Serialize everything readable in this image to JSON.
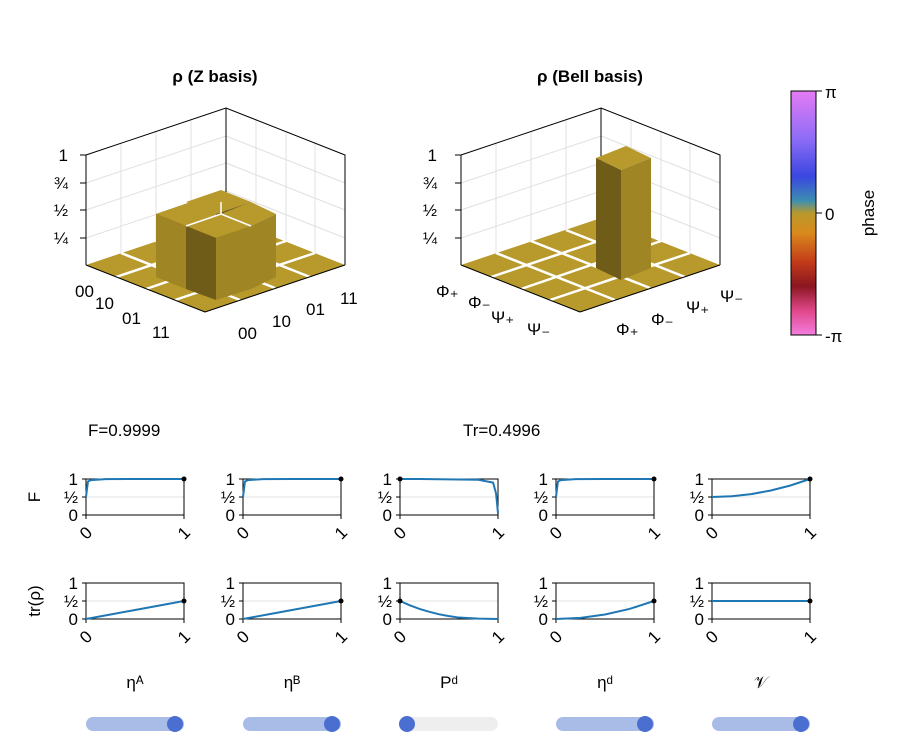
{
  "chart_data": [
    {
      "type": "bar3d",
      "title": "ρ (Z basis)",
      "z_ticks": [
        "1",
        "¾",
        "½",
        "¼"
      ],
      "row_labels": [
        "00",
        "10",
        "01",
        "11"
      ],
      "col_labels": [
        "00",
        "10",
        "01",
        "11"
      ],
      "values": [
        [
          0,
          0,
          0,
          0
        ],
        [
          0,
          0.5,
          0.5,
          0
        ],
        [
          0,
          0.5,
          0.5,
          0
        ],
        [
          0,
          0,
          0,
          0
        ]
      ],
      "phase": 0
    },
    {
      "type": "bar3d",
      "title": "ρ (Bell basis)",
      "z_ticks": [
        "1",
        "¾",
        "½",
        "¼"
      ],
      "row_labels": [
        "Φ₊",
        "Φ₋",
        "Ψ₊",
        "Ψ₋"
      ],
      "col_labels": [
        "Φ₊",
        "Φ₋",
        "Ψ₊",
        "Ψ₋"
      ],
      "values": [
        [
          0,
          0,
          0,
          0
        ],
        [
          0,
          0,
          0,
          0
        ],
        [
          0,
          0,
          1,
          0
        ],
        [
          0,
          0,
          0,
          0
        ]
      ],
      "phase": 0
    },
    {
      "type": "colorbar",
      "label": "phase",
      "ticks": [
        "π",
        "0",
        "-π"
      ]
    },
    {
      "type": "line",
      "grid": "2x5",
      "row_ylabels": [
        "F",
        "tr(ρ)"
      ],
      "y_ticks": [
        "1",
        "½",
        "0"
      ],
      "x_ticks": [
        "0",
        "1"
      ],
      "col_xlabels": [
        "ηᴬ",
        "ηᴮ",
        "Pᵈ",
        "ηᵈ",
        "𝒱"
      ],
      "panels": [
        {
          "name": "F vs etaA",
          "x": [
            0,
            0.02,
            0.05,
            0.2,
            0.5,
            0.8,
            1
          ],
          "y": [
            0.5,
            0.93,
            0.97,
            0.995,
            1,
            1,
            1
          ],
          "marker": [
            1,
            1
          ]
        },
        {
          "name": "F vs etaB",
          "x": [
            0,
            0.02,
            0.05,
            0.2,
            0.5,
            0.8,
            1
          ],
          "y": [
            0.5,
            0.93,
            0.97,
            0.995,
            1,
            1,
            1
          ],
          "marker": [
            1,
            1
          ]
        },
        {
          "name": "F vs Pd",
          "x": [
            0,
            0.2,
            0.5,
            0.8,
            0.95,
            0.98,
            1
          ],
          "y": [
            1,
            1,
            0.99,
            0.98,
            0.9,
            0.6,
            0.05
          ],
          "marker": [
            0,
            1
          ]
        },
        {
          "name": "F vs etad",
          "x": [
            0,
            0.02,
            0.05,
            0.2,
            0.5,
            0.8,
            1
          ],
          "y": [
            0.5,
            0.93,
            0.97,
            0.995,
            1,
            1,
            1
          ],
          "marker": [
            1,
            1
          ]
        },
        {
          "name": "F vs V",
          "x": [
            0,
            0.2,
            0.4,
            0.6,
            0.8,
            1
          ],
          "y": [
            0.5,
            0.52,
            0.58,
            0.68,
            0.82,
            1
          ],
          "marker": [
            1,
            1
          ]
        },
        {
          "name": "tr vs etaA",
          "x": [
            0,
            0.25,
            0.5,
            0.75,
            1
          ],
          "y": [
            0,
            0.125,
            0.25,
            0.375,
            0.5
          ],
          "marker": [
            1,
            0.5
          ]
        },
        {
          "name": "tr vs etaB",
          "x": [
            0,
            0.25,
            0.5,
            0.75,
            1
          ],
          "y": [
            0,
            0.125,
            0.25,
            0.375,
            0.5
          ],
          "marker": [
            1,
            0.5
          ]
        },
        {
          "name": "tr vs Pd",
          "x": [
            0,
            0.1,
            0.2,
            0.3,
            0.4,
            0.5,
            0.6,
            0.8,
            1
          ],
          "y": [
            0.5,
            0.38,
            0.28,
            0.2,
            0.13,
            0.08,
            0.04,
            0.01,
            0
          ],
          "marker": [
            0,
            0.5
          ]
        },
        {
          "name": "tr vs etad",
          "x": [
            0,
            0.25,
            0.5,
            0.75,
            1
          ],
          "y": [
            0,
            0.03,
            0.125,
            0.28,
            0.5
          ],
          "marker": [
            1,
            0.5
          ]
        },
        {
          "name": "tr vs V",
          "x": [
            0,
            0.25,
            0.5,
            0.75,
            1
          ],
          "y": [
            0.5,
            0.5,
            0.5,
            0.5,
            0.5
          ],
          "marker": [
            1,
            0.5
          ]
        }
      ]
    }
  ],
  "readouts": {
    "fidelity": "F=0.9999",
    "trace": "Tr=0.4996"
  },
  "sliders": [
    {
      "name": "etaA",
      "value": 1.0
    },
    {
      "name": "etaB",
      "value": 1.0
    },
    {
      "name": "Pd",
      "value": 0.0
    },
    {
      "name": "etad",
      "value": 1.0
    },
    {
      "name": "V",
      "value": 1.0
    }
  ],
  "colors": {
    "bar_top": "#b8992c",
    "bar_front": "#a08524",
    "bar_side": "#6f5c18",
    "floor": "#b8992c",
    "line": "#1f77b4",
    "slider_fill": "#a9bce8",
    "slider_bg": "#eeeeee",
    "slider_thumb": "#4a6fd1"
  }
}
